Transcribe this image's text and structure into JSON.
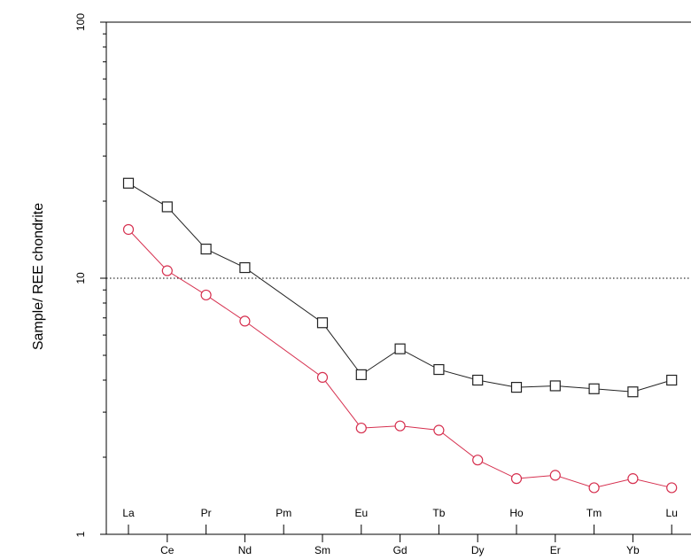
{
  "chart_data": {
    "type": "line",
    "title": "",
    "xlabel": "",
    "ylabel": "Sample/ REE chondrite",
    "y_scale": "log",
    "ylim": [
      1,
      100
    ],
    "y_ticks": [
      {
        "value": 1,
        "label": "1"
      },
      {
        "value": 10,
        "label": "10"
      },
      {
        "value": 100,
        "label": "100"
      }
    ],
    "reference_line": {
      "value": 10,
      "style": "dotted"
    },
    "categories": [
      "La",
      "Ce",
      "Pr",
      "Nd",
      "Pm",
      "Sm",
      "Eu",
      "Gd",
      "Tb",
      "Dy",
      "Ho",
      "Er",
      "Tm",
      "Yb",
      "Lu"
    ],
    "series": [
      {
        "marker": "square",
        "color": "#222222",
        "values": [
          23.5,
          19.0,
          13.0,
          11.0,
          null,
          6.7,
          4.2,
          5.3,
          4.4,
          4.0,
          3.75,
          3.8,
          3.7,
          3.6,
          4.0
        ]
      },
      {
        "marker": "circle",
        "color": "#d6304f",
        "values": [
          15.5,
          10.7,
          8.6,
          6.8,
          null,
          4.1,
          2.6,
          2.65,
          2.55,
          1.95,
          1.65,
          1.7,
          1.52,
          1.65,
          1.52
        ]
      }
    ],
    "grid": false,
    "legend": "none"
  }
}
